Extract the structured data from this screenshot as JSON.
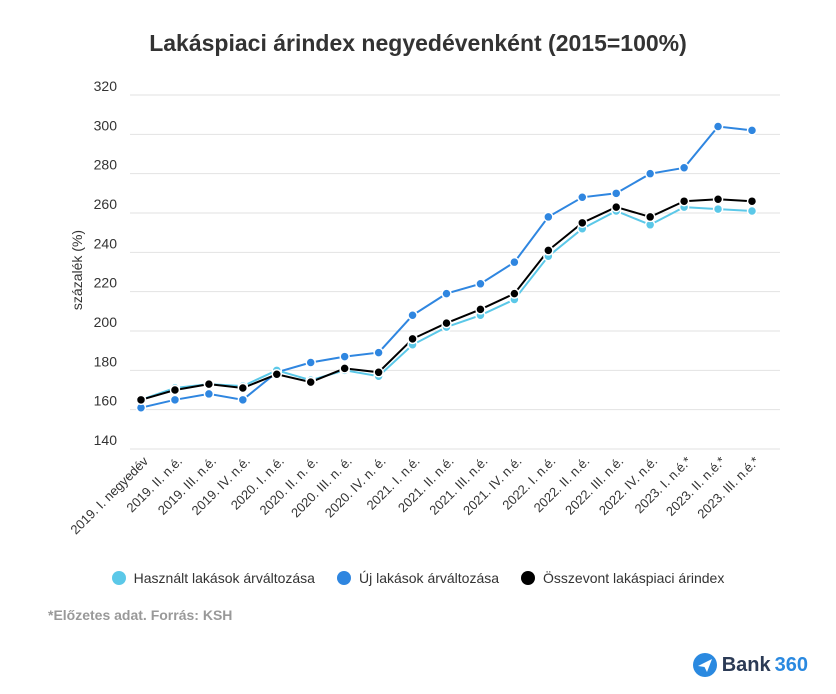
{
  "chart_data": {
    "type": "line",
    "title": "Lakáspiaci árindex negyedévenként (2015=100%)",
    "xlabel": "",
    "ylabel": "százalék (%)",
    "ylim": [
      140,
      320
    ],
    "yticks": [
      140,
      160,
      180,
      200,
      220,
      240,
      260,
      280,
      300,
      320
    ],
    "categories": [
      "2019. I. negyedév",
      "2019. II. n.é.",
      "2019. III. n.é.",
      "2019. IV. n.é.",
      "2020. I. n.é.",
      "2020. II. n. é.",
      "2020. III. n. é.",
      "2020. IV. n. é.",
      "2021. I. n.é.",
      "2021. II. n.é.",
      "2021. III. n.é.",
      "2021. IV. n.é.",
      "2022. I. n.é.",
      "2022. II. n.é.",
      "2022. III. n.é.",
      "2022. IV. n.é.",
      "2023. I. n.é.*",
      "2023. II. n.é.*",
      "2023. III. n.é.*"
    ],
    "series": [
      {
        "name": "Használt lakások árváltozása",
        "color": "#5bc8e8",
        "values": [
          165,
          171,
          173,
          172,
          180,
          175,
          180,
          177,
          193,
          202,
          208,
          216,
          238,
          252,
          261,
          254,
          263,
          262,
          261
        ]
      },
      {
        "name": "Új lakások árváltozása",
        "color": "#2f86e0",
        "values": [
          161,
          165,
          168,
          165,
          179,
          184,
          187,
          189,
          208,
          219,
          224,
          235,
          258,
          268,
          270,
          280,
          283,
          304,
          302
        ]
      },
      {
        "name": "Összevont lakáspiaci árindex",
        "color": "#000000",
        "values": [
          165,
          170,
          173,
          171,
          178,
          174,
          181,
          179,
          196,
          204,
          211,
          219,
          241,
          255,
          263,
          258,
          266,
          267,
          266
        ]
      }
    ],
    "legend_position": "bottom"
  },
  "footnote": "*Előzetes adat. Forrás: KSH",
  "brand": {
    "name": "Bank",
    "number": "360"
  }
}
